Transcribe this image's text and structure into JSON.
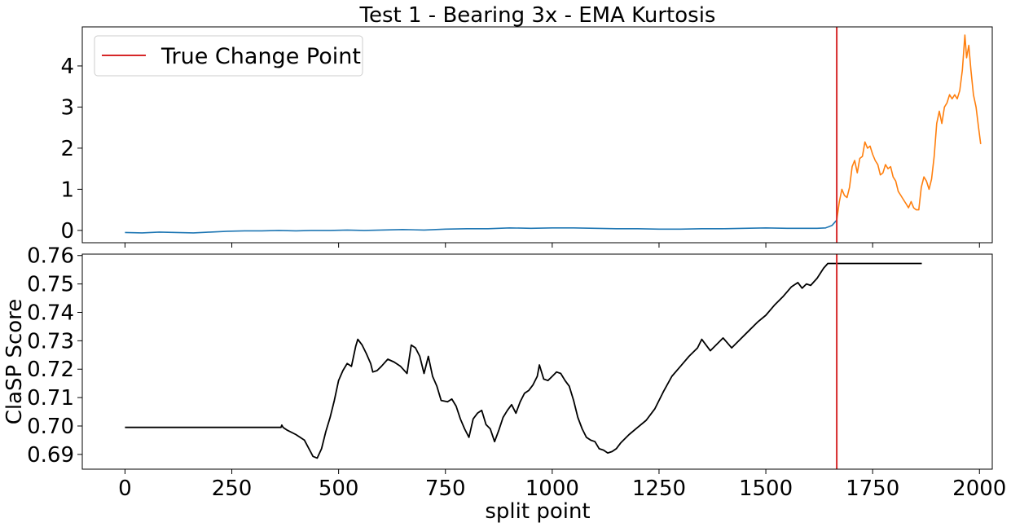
{
  "chart_data": [
    {
      "type": "line",
      "title": "Test 1 - Bearing 3x - EMA Kurtosis",
      "xlabel": "",
      "ylabel": "",
      "xlim": [
        -100,
        2030
      ],
      "ylim": [
        -0.3,
        4.95
      ],
      "yticks": [
        0,
        1,
        2,
        3,
        4
      ],
      "xticks": [
        0,
        250,
        500,
        750,
        1000,
        1250,
        1500,
        1750,
        2000
      ],
      "xtick_labels_visible": false,
      "legend": {
        "position": "top-left",
        "entries": [
          "True Change Point"
        ]
      },
      "change_point": {
        "label": "True Change Point",
        "x": 1666,
        "color": "#d62728"
      },
      "series": [
        {
          "color": "#1f77b4",
          "points": [
            [
              0,
              -0.05
            ],
            [
              40,
              -0.06
            ],
            [
              80,
              -0.04
            ],
            [
              120,
              -0.05
            ],
            [
              160,
              -0.06
            ],
            [
              200,
              -0.04
            ],
            [
              240,
              -0.02
            ],
            [
              280,
              -0.01
            ],
            [
              320,
              -0.01
            ],
            [
              360,
              0.0
            ],
            [
              400,
              -0.01
            ],
            [
              440,
              0.0
            ],
            [
              480,
              0.0
            ],
            [
              520,
              0.01
            ],
            [
              560,
              0.0
            ],
            [
              600,
              0.01
            ],
            [
              650,
              0.02
            ],
            [
              700,
              0.01
            ],
            [
              750,
              0.03
            ],
            [
              800,
              0.04
            ],
            [
              850,
              0.04
            ],
            [
              900,
              0.06
            ],
            [
              950,
              0.05
            ],
            [
              1000,
              0.06
            ],
            [
              1050,
              0.06
            ],
            [
              1100,
              0.05
            ],
            [
              1150,
              0.04
            ],
            [
              1200,
              0.04
            ],
            [
              1250,
              0.03
            ],
            [
              1300,
              0.03
            ],
            [
              1350,
              0.04
            ],
            [
              1400,
              0.04
            ],
            [
              1450,
              0.05
            ],
            [
              1500,
              0.06
            ],
            [
              1550,
              0.05
            ],
            [
              1600,
              0.05
            ],
            [
              1620,
              0.05
            ],
            [
              1640,
              0.06
            ],
            [
              1655,
              0.12
            ],
            [
              1666,
              0.25
            ]
          ]
        },
        {
          "color": "#ff7f0e",
          "points": [
            [
              1666,
              0.25
            ],
            [
              1672,
              0.7
            ],
            [
              1678,
              1.0
            ],
            [
              1684,
              0.85
            ],
            [
              1690,
              0.8
            ],
            [
              1696,
              1.05
            ],
            [
              1702,
              1.55
            ],
            [
              1708,
              1.7
            ],
            [
              1714,
              1.4
            ],
            [
              1720,
              1.75
            ],
            [
              1726,
              1.8
            ],
            [
              1732,
              2.15
            ],
            [
              1738,
              2.0
            ],
            [
              1744,
              2.05
            ],
            [
              1750,
              1.85
            ],
            [
              1756,
              1.7
            ],
            [
              1762,
              1.6
            ],
            [
              1768,
              1.35
            ],
            [
              1774,
              1.4
            ],
            [
              1780,
              1.6
            ],
            [
              1786,
              1.5
            ],
            [
              1792,
              1.55
            ],
            [
              1798,
              1.3
            ],
            [
              1804,
              1.2
            ],
            [
              1810,
              0.95
            ],
            [
              1816,
              0.85
            ],
            [
              1822,
              0.75
            ],
            [
              1828,
              0.65
            ],
            [
              1834,
              0.55
            ],
            [
              1840,
              0.7
            ],
            [
              1846,
              0.55
            ],
            [
              1852,
              0.5
            ],
            [
              1858,
              0.5
            ],
            [
              1864,
              1.05
            ],
            [
              1870,
              1.3
            ],
            [
              1876,
              1.2
            ],
            [
              1882,
              1.0
            ],
            [
              1888,
              1.25
            ],
            [
              1894,
              1.8
            ],
            [
              1900,
              2.6
            ],
            [
              1906,
              2.9
            ],
            [
              1912,
              2.6
            ],
            [
              1918,
              3.0
            ],
            [
              1924,
              3.1
            ],
            [
              1930,
              3.3
            ],
            [
              1936,
              3.2
            ],
            [
              1942,
              3.3
            ],
            [
              1948,
              3.2
            ],
            [
              1954,
              3.4
            ],
            [
              1960,
              3.9
            ],
            [
              1966,
              4.75
            ],
            [
              1970,
              4.2
            ],
            [
              1975,
              4.5
            ],
            [
              1980,
              3.9
            ],
            [
              1986,
              3.3
            ],
            [
              1992,
              3.0
            ],
            [
              1998,
              2.5
            ],
            [
              2003,
              2.1
            ]
          ]
        }
      ]
    },
    {
      "type": "line",
      "title": "",
      "xlabel": "split point",
      "ylabel": "ClaSP Score",
      "xlim": [
        -100,
        2030
      ],
      "ylim": [
        0.6848,
        0.7605
      ],
      "yticks": [
        0.69,
        0.7,
        0.71,
        0.72,
        0.73,
        0.74,
        0.75,
        0.76
      ],
      "ytick_labels": [
        "0.69",
        "0.70",
        "0.71",
        "0.72",
        "0.73",
        "0.74",
        "0.75",
        "0.76"
      ],
      "xticks": [
        0,
        250,
        500,
        750,
        1000,
        1250,
        1500,
        1750,
        2000
      ],
      "xtick_labels": [
        "0",
        "250",
        "500",
        "750",
        "1000",
        "1250",
        "1500",
        "1750",
        "2000"
      ],
      "change_point": {
        "x": 1666,
        "color": "#d62728"
      },
      "series": [
        {
          "color": "#000000",
          "points": [
            [
              0,
              0.6995
            ],
            [
              365,
              0.6995
            ],
            [
              367,
              0.7003
            ],
            [
              370,
              0.6995
            ],
            [
              380,
              0.6985
            ],
            [
              400,
              0.697
            ],
            [
              420,
              0.695
            ],
            [
              440,
              0.6893
            ],
            [
              450,
              0.6887
            ],
            [
              460,
              0.692
            ],
            [
              470,
              0.698
            ],
            [
              480,
              0.703
            ],
            [
              490,
              0.709
            ],
            [
              500,
              0.716
            ],
            [
              510,
              0.7195
            ],
            [
              520,
              0.722
            ],
            [
              530,
              0.721
            ],
            [
              540,
              0.728
            ],
            [
              545,
              0.7305
            ],
            [
              555,
              0.7285
            ],
            [
              565,
              0.7255
            ],
            [
              575,
              0.722
            ],
            [
              580,
              0.719
            ],
            [
              590,
              0.7195
            ],
            [
              600,
              0.721
            ],
            [
              615,
              0.7235
            ],
            [
              630,
              0.7225
            ],
            [
              645,
              0.721
            ],
            [
              660,
              0.7185
            ],
            [
              670,
              0.7285
            ],
            [
              680,
              0.7275
            ],
            [
              690,
              0.7245
            ],
            [
              700,
              0.7185
            ],
            [
              710,
              0.7245
            ],
            [
              720,
              0.7175
            ],
            [
              730,
              0.714
            ],
            [
              740,
              0.709
            ],
            [
              755,
              0.7085
            ],
            [
              765,
              0.7095
            ],
            [
              775,
              0.707
            ],
            [
              785,
              0.7025
            ],
            [
              795,
              0.699
            ],
            [
              805,
              0.696
            ],
            [
              815,
              0.7025
            ],
            [
              825,
              0.7045
            ],
            [
              835,
              0.7055
            ],
            [
              845,
              0.7005
            ],
            [
              855,
              0.699
            ],
            [
              865,
              0.6945
            ],
            [
              875,
              0.6985
            ],
            [
              885,
              0.703
            ],
            [
              895,
              0.7055
            ],
            [
              905,
              0.7075
            ],
            [
              915,
              0.7045
            ],
            [
              925,
              0.7085
            ],
            [
              935,
              0.7115
            ],
            [
              945,
              0.7125
            ],
            [
              955,
              0.7145
            ],
            [
              965,
              0.7175
            ],
            [
              970,
              0.7215
            ],
            [
              980,
              0.7165
            ],
            [
              990,
              0.716
            ],
            [
              1000,
              0.7175
            ],
            [
              1010,
              0.719
            ],
            [
              1020,
              0.7185
            ],
            [
              1030,
              0.716
            ],
            [
              1040,
              0.714
            ],
            [
              1050,
              0.709
            ],
            [
              1060,
              0.703
            ],
            [
              1070,
              0.699
            ],
            [
              1080,
              0.696
            ],
            [
              1090,
              0.695
            ],
            [
              1100,
              0.6945
            ],
            [
              1110,
              0.692
            ],
            [
              1120,
              0.6915
            ],
            [
              1130,
              0.6905
            ],
            [
              1140,
              0.691
            ],
            [
              1150,
              0.692
            ],
            [
              1160,
              0.694
            ],
            [
              1180,
              0.697
            ],
            [
              1200,
              0.6995
            ],
            [
              1220,
              0.702
            ],
            [
              1240,
              0.706
            ],
            [
              1260,
              0.712
            ],
            [
              1280,
              0.7175
            ],
            [
              1300,
              0.721
            ],
            [
              1320,
              0.7245
            ],
            [
              1340,
              0.7275
            ],
            [
              1350,
              0.7305
            ],
            [
              1370,
              0.7265
            ],
            [
              1390,
              0.7295
            ],
            [
              1400,
              0.731
            ],
            [
              1420,
              0.7275
            ],
            [
              1440,
              0.7305
            ],
            [
              1460,
              0.7335
            ],
            [
              1480,
              0.7365
            ],
            [
              1500,
              0.739
            ],
            [
              1520,
              0.7425
            ],
            [
              1540,
              0.7455
            ],
            [
              1560,
              0.749
            ],
            [
              1575,
              0.7505
            ],
            [
              1585,
              0.7485
            ],
            [
              1595,
              0.75
            ],
            [
              1605,
              0.7495
            ],
            [
              1620,
              0.752
            ],
            [
              1635,
              0.7555
            ],
            [
              1645,
              0.7572
            ],
            [
              1700,
              0.7572
            ],
            [
              1800,
              0.7572
            ],
            [
              1865,
              0.7572
            ]
          ]
        }
      ]
    }
  ]
}
